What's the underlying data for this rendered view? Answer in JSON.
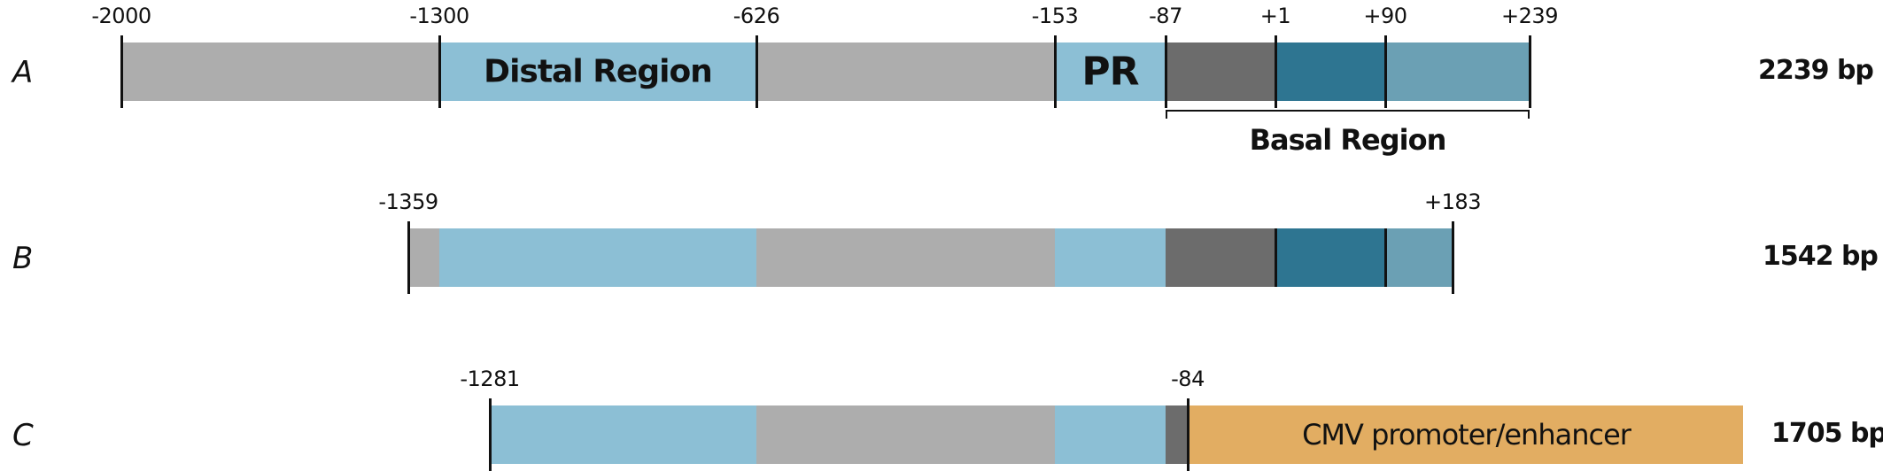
{
  "colors": {
    "intervening": "#adadad",
    "regulatory": "#8cbfd5",
    "basal_dark": "#6c6c6c",
    "exon_teal": "#2e7591",
    "utr_teal": "#6ba0b4",
    "cmv": "#e2ad62",
    "line": "#111111"
  },
  "constructs": [
    {
      "letter": "A",
      "size": "2239 bp",
      "labels": [
        {
          "pos": -2000,
          "text": "-2000"
        },
        {
          "pos": -1300,
          "text": "-1300"
        },
        {
          "pos": -626,
          "text": "-626"
        },
        {
          "pos": -153,
          "text": "-153"
        },
        {
          "pos": -87,
          "text": "-87"
        },
        {
          "pos": 1,
          "text": "+1"
        },
        {
          "pos": 90,
          "text": "+90"
        },
        {
          "pos": 239,
          "text": "+239"
        }
      ],
      "segments": [
        {
          "from": -2000,
          "to": -1300,
          "color": "intervening",
          "text": ""
        },
        {
          "from": -1300,
          "to": -626,
          "color": "regulatory",
          "text": "Distal Region"
        },
        {
          "from": -626,
          "to": -153,
          "color": "intervening",
          "text": ""
        },
        {
          "from": -153,
          "to": -87,
          "color": "regulatory",
          "text": "PR"
        },
        {
          "from": -87,
          "to": 1,
          "color": "basal_dark",
          "text": ""
        },
        {
          "from": 1,
          "to": 90,
          "color": "exon_teal",
          "text": ""
        },
        {
          "from": 90,
          "to": 239,
          "color": "utr_teal",
          "text": ""
        }
      ],
      "bracket": {
        "from": -87,
        "to": 239,
        "text": "Basal Region"
      }
    },
    {
      "letter": "B",
      "size": "1542 bp",
      "labels": [
        {
          "pos": -1359,
          "text": "-1359"
        },
        {
          "pos": 183,
          "text": "+183"
        }
      ],
      "segments": [
        {
          "from": -1359,
          "to": -1300,
          "color": "intervening",
          "text": ""
        },
        {
          "from": -1300,
          "to": -626,
          "color": "regulatory",
          "text": ""
        },
        {
          "from": -626,
          "to": -153,
          "color": "intervening",
          "text": ""
        },
        {
          "from": -153,
          "to": -87,
          "color": "regulatory",
          "text": ""
        },
        {
          "from": -87,
          "to": 1,
          "color": "basal_dark",
          "text": ""
        },
        {
          "from": 1,
          "to": 90,
          "color": "exon_teal",
          "text": ""
        },
        {
          "from": 90,
          "to": 183,
          "color": "utr_teal",
          "text": ""
        }
      ],
      "inner_ticks": [
        1,
        90
      ]
    },
    {
      "letter": "C",
      "size": "1705 bp",
      "labels": [
        {
          "pos": -1281,
          "text": "-1281"
        },
        {
          "pos": -84,
          "text": "-84"
        }
      ],
      "segments": [
        {
          "from": -1281,
          "to": -626,
          "color": "regulatory",
          "text": ""
        },
        {
          "from": -626,
          "to": -153,
          "color": "intervening",
          "text": ""
        },
        {
          "from": -153,
          "to": -87,
          "color": "regulatory",
          "text": ""
        },
        {
          "from": -87,
          "to": -84,
          "color": "basal_dark",
          "text": ""
        }
      ],
      "extra_block": {
        "color": "cmv",
        "text": "CMV promoter/enhancer"
      }
    }
  ]
}
